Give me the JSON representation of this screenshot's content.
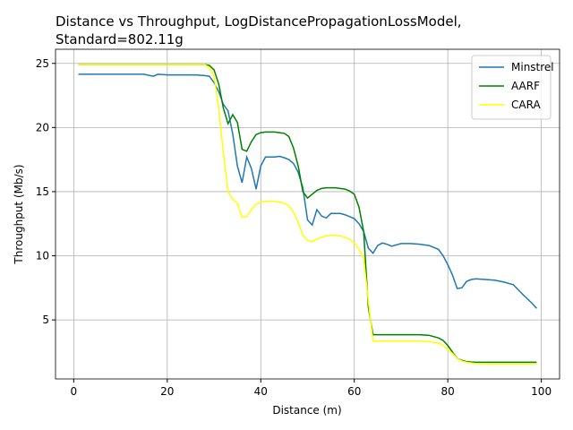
{
  "chart_data": {
    "type": "line",
    "title": [
      "Distance vs Throughput, LogDistancePropagationLossModel,",
      "Standard=802.11g"
    ],
    "xlabel": "Distance (m)",
    "ylabel": "Throughput (Mb/s)",
    "x": [
      1,
      5,
      10,
      15,
      17,
      18,
      20,
      22,
      24,
      26,
      28,
      29,
      30,
      31,
      32,
      33,
      34,
      35,
      36,
      37,
      38,
      39,
      40,
      41,
      42,
      43,
      44,
      45,
      46,
      47,
      48,
      49,
      50,
      51,
      52,
      53,
      54,
      55,
      56,
      57,
      58,
      59,
      60,
      61,
      62,
      63,
      64,
      65,
      66,
      67,
      68,
      70,
      72,
      74,
      76,
      78,
      79,
      80,
      81,
      82,
      83,
      84,
      85,
      86,
      88,
      90,
      92,
      94,
      96,
      98,
      99
    ],
    "series": [
      {
        "name": "Minstrel",
        "color": "#1f77b4",
        "values": [
          24.15,
          24.15,
          24.15,
          24.15,
          24.0,
          24.15,
          24.1,
          24.1,
          24.1,
          24.1,
          24.05,
          24.0,
          23.5,
          22.8,
          21.8,
          21.3,
          19.5,
          17.0,
          15.7,
          17.7,
          16.8,
          15.2,
          17.0,
          17.7,
          17.7,
          17.7,
          17.75,
          17.65,
          17.5,
          17.2,
          16.5,
          15.3,
          12.8,
          12.4,
          13.6,
          13.1,
          12.95,
          13.3,
          13.3,
          13.3,
          13.2,
          13.05,
          12.9,
          12.5,
          11.9,
          10.6,
          10.2,
          10.8,
          11.0,
          10.9,
          10.75,
          10.95,
          10.95,
          10.9,
          10.8,
          10.5,
          10.0,
          9.3,
          8.5,
          7.45,
          7.5,
          8.0,
          8.15,
          8.2,
          8.15,
          8.1,
          7.95,
          7.75,
          7.0,
          6.3,
          5.9
        ]
      },
      {
        "name": "AARF",
        "color": "#008000",
        "values": [
          24.9,
          24.9,
          24.9,
          24.9,
          24.9,
          24.9,
          24.9,
          24.9,
          24.9,
          24.9,
          24.9,
          24.85,
          24.5,
          23.4,
          21.5,
          20.3,
          21.0,
          20.4,
          18.3,
          18.15,
          18.9,
          19.45,
          19.6,
          19.65,
          19.65,
          19.65,
          19.6,
          19.55,
          19.3,
          18.4,
          17.0,
          15.0,
          14.5,
          14.8,
          15.1,
          15.25,
          15.3,
          15.3,
          15.3,
          15.25,
          15.2,
          15.05,
          14.8,
          13.8,
          11.9,
          6.0,
          3.85,
          3.85,
          3.85,
          3.85,
          3.85,
          3.85,
          3.85,
          3.85,
          3.8,
          3.6,
          3.4,
          3.0,
          2.5,
          2.0,
          1.85,
          1.75,
          1.72,
          1.7,
          1.7,
          1.7,
          1.7,
          1.7,
          1.7,
          1.7,
          1.7
        ]
      },
      {
        "name": "CARA",
        "color": "#ffff00",
        "values": [
          24.9,
          24.9,
          24.9,
          24.9,
          24.9,
          24.9,
          24.9,
          24.9,
          24.9,
          24.9,
          24.9,
          24.7,
          24.0,
          21.5,
          18.0,
          15.0,
          14.4,
          14.1,
          13.0,
          13.05,
          13.6,
          14.0,
          14.2,
          14.25,
          14.25,
          14.25,
          14.2,
          14.1,
          13.9,
          13.4,
          12.6,
          11.6,
          11.2,
          11.1,
          11.3,
          11.45,
          11.55,
          11.6,
          11.6,
          11.55,
          11.45,
          11.3,
          11.0,
          10.5,
          9.8,
          6.5,
          3.35,
          3.35,
          3.35,
          3.35,
          3.35,
          3.35,
          3.35,
          3.35,
          3.3,
          3.2,
          3.0,
          2.7,
          2.4,
          2.0,
          1.8,
          1.7,
          1.65,
          1.6,
          1.58,
          1.58,
          1.58,
          1.58,
          1.58,
          1.58,
          1.58
        ]
      }
    ],
    "xlim": [
      -3.9,
      103.9
    ],
    "ylim": [
      0.4,
      26.1
    ],
    "xticks": [
      0,
      20,
      40,
      60,
      80,
      100
    ],
    "yticks": [
      5,
      10,
      15,
      20,
      25
    ],
    "grid": true,
    "legend": "upper right"
  }
}
